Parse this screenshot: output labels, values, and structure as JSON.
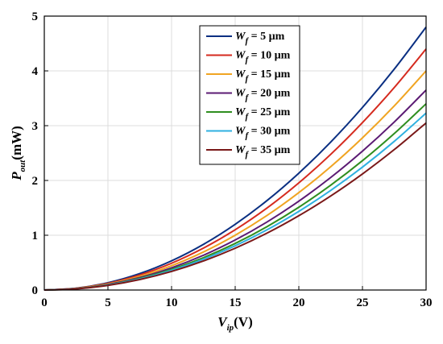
{
  "chart_data": {
    "type": "line",
    "xlabel": {
      "main": "V",
      "sub": "ip",
      "unit": "(V)"
    },
    "ylabel": {
      "main": "P",
      "sub": "out",
      "unit": "(mW)"
    },
    "xlim": [
      0,
      30
    ],
    "ylim": [
      0,
      5
    ],
    "xticks": [
      0,
      5,
      10,
      15,
      20,
      25,
      30
    ],
    "yticks": [
      0,
      1,
      2,
      3,
      4,
      5
    ],
    "grid": true,
    "legend_position": "top-center",
    "x": [
      0,
      2.5,
      5,
      7.5,
      10,
      12.5,
      15,
      17.5,
      20,
      22.5,
      25,
      27.5,
      30
    ],
    "series": [
      {
        "name_main": "W",
        "name_sub": "f",
        "name_rest": " = 5 µm",
        "color": "#0a2f82",
        "values": [
          0,
          0.033,
          0.133,
          0.3,
          0.533,
          0.833,
          1.2,
          1.633,
          2.133,
          2.7,
          3.333,
          4.033,
          4.8
        ]
      },
      {
        "name_main": "W",
        "name_sub": "f",
        "name_rest": " = 10 µm",
        "color": "#d52a1e",
        "values": [
          0,
          0.031,
          0.122,
          0.275,
          0.489,
          0.764,
          1.1,
          1.497,
          1.956,
          2.475,
          3.056,
          3.697,
          4.4
        ]
      },
      {
        "name_main": "W",
        "name_sub": "f",
        "name_rest": " = 15 µm",
        "color": "#f0a422",
        "values": [
          0,
          0.028,
          0.111,
          0.25,
          0.444,
          0.694,
          1.0,
          1.361,
          1.778,
          2.25,
          2.778,
          3.361,
          4.0
        ]
      },
      {
        "name_main": "W",
        "name_sub": "f",
        "name_rest": " = 20 µm",
        "color": "#5b1a73",
        "values": [
          0,
          0.025,
          0.101,
          0.228,
          0.406,
          0.634,
          0.913,
          1.242,
          1.622,
          2.053,
          2.535,
          3.067,
          3.65
        ]
      },
      {
        "name_main": "W",
        "name_sub": "f",
        "name_rest": " = 25 µm",
        "color": "#2f8e1f",
        "values": [
          0,
          0.024,
          0.094,
          0.213,
          0.378,
          0.59,
          0.85,
          1.157,
          1.511,
          1.913,
          2.361,
          2.857,
          3.4
        ]
      },
      {
        "name_main": "W",
        "name_sub": "f",
        "name_rest": " = 30 µm",
        "color": "#2fb0e0",
        "values": [
          0,
          0.022,
          0.09,
          0.202,
          0.359,
          0.561,
          0.808,
          1.099,
          1.436,
          1.817,
          2.243,
          2.714,
          3.23
        ]
      },
      {
        "name_main": "W",
        "name_sub": "f",
        "name_rest": " = 35 µm",
        "color": "#7a1818",
        "values": [
          0,
          0.021,
          0.085,
          0.191,
          0.339,
          0.53,
          0.763,
          1.038,
          1.356,
          1.716,
          2.119,
          2.564,
          3.05
        ]
      }
    ]
  }
}
